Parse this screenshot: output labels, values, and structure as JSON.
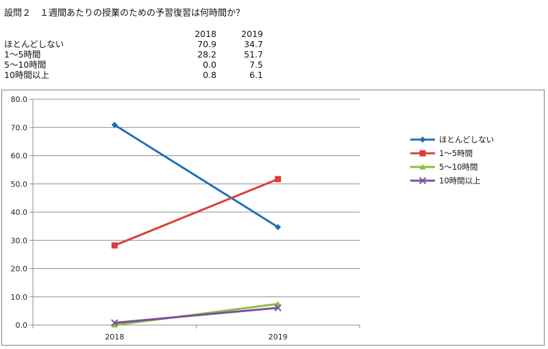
{
  "title": "設問２　１週間あたりの授業のための予習復習は何時間か？",
  "table": {
    "headers": [
      "2018",
      "2019"
    ],
    "rows": [
      {
        "label": "ほとんどしない",
        "values": [
          "70.9",
          "34.7"
        ]
      },
      {
        "label": "1～5時間",
        "values": [
          "28.2",
          "51.7"
        ]
      },
      {
        "label": "5～10時間",
        "values": [
          "0.0",
          "7.5"
        ]
      },
      {
        "label": "10時間以上",
        "values": [
          "0.8",
          "6.1"
        ]
      }
    ]
  },
  "chart_data": {
    "type": "line",
    "categories": [
      "2018",
      "2019"
    ],
    "series": [
      {
        "name": "ほとんどしない",
        "values": [
          70.9,
          34.7
        ],
        "color": "#1f6fb8",
        "marker": "diamond"
      },
      {
        "name": "1～5時間",
        "values": [
          28.2,
          51.7
        ],
        "color": "#d8403b",
        "marker": "square"
      },
      {
        "name": "5～10時間",
        "values": [
          0.0,
          7.5
        ],
        "color": "#8cbd3f",
        "marker": "triangle"
      },
      {
        "name": "10時間以上",
        "values": [
          0.8,
          6.1
        ],
        "color": "#7a4fa0",
        "marker": "x"
      }
    ],
    "ylim": [
      0,
      80
    ],
    "ytick_labels": [
      "0.0",
      "10.0",
      "20.0",
      "30.0",
      "40.0",
      "50.0",
      "60.0",
      "70.0",
      "80.0"
    ],
    "grid": true,
    "legend": "right"
  }
}
